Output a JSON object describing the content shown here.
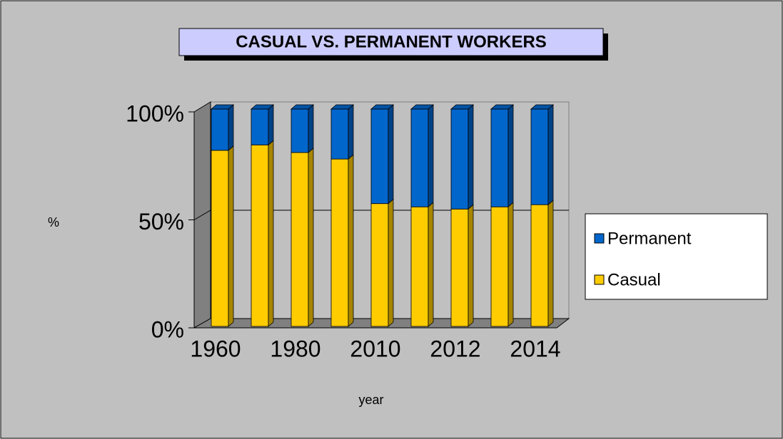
{
  "chart_data": {
    "type": "bar",
    "stacked": true,
    "title": "CASUAL VS. PERMANENT WORKERS",
    "x_label": "year",
    "y_label": "%",
    "categories": [
      "1960",
      null,
      "1980",
      null,
      "2010",
      null,
      "2012",
      null,
      "2014"
    ],
    "series": [
      {
        "name": "Casual",
        "color": "#ffcc00",
        "values": [
          81,
          83.5,
          80,
          77,
          56.5,
          55,
          54,
          55,
          56
        ]
      },
      {
        "name": "Permanent",
        "color": "#0066cc",
        "values": [
          19,
          16.5,
          20,
          23,
          43.5,
          45,
          46,
          45,
          44
        ]
      }
    ],
    "ylim": [
      0,
      100
    ],
    "yticks": [
      {
        "value": 0,
        "label": "0%"
      },
      {
        "value": 50,
        "label": "50%"
      },
      {
        "value": 100,
        "label": "100%"
      }
    ],
    "grid": true,
    "legend": "right"
  }
}
